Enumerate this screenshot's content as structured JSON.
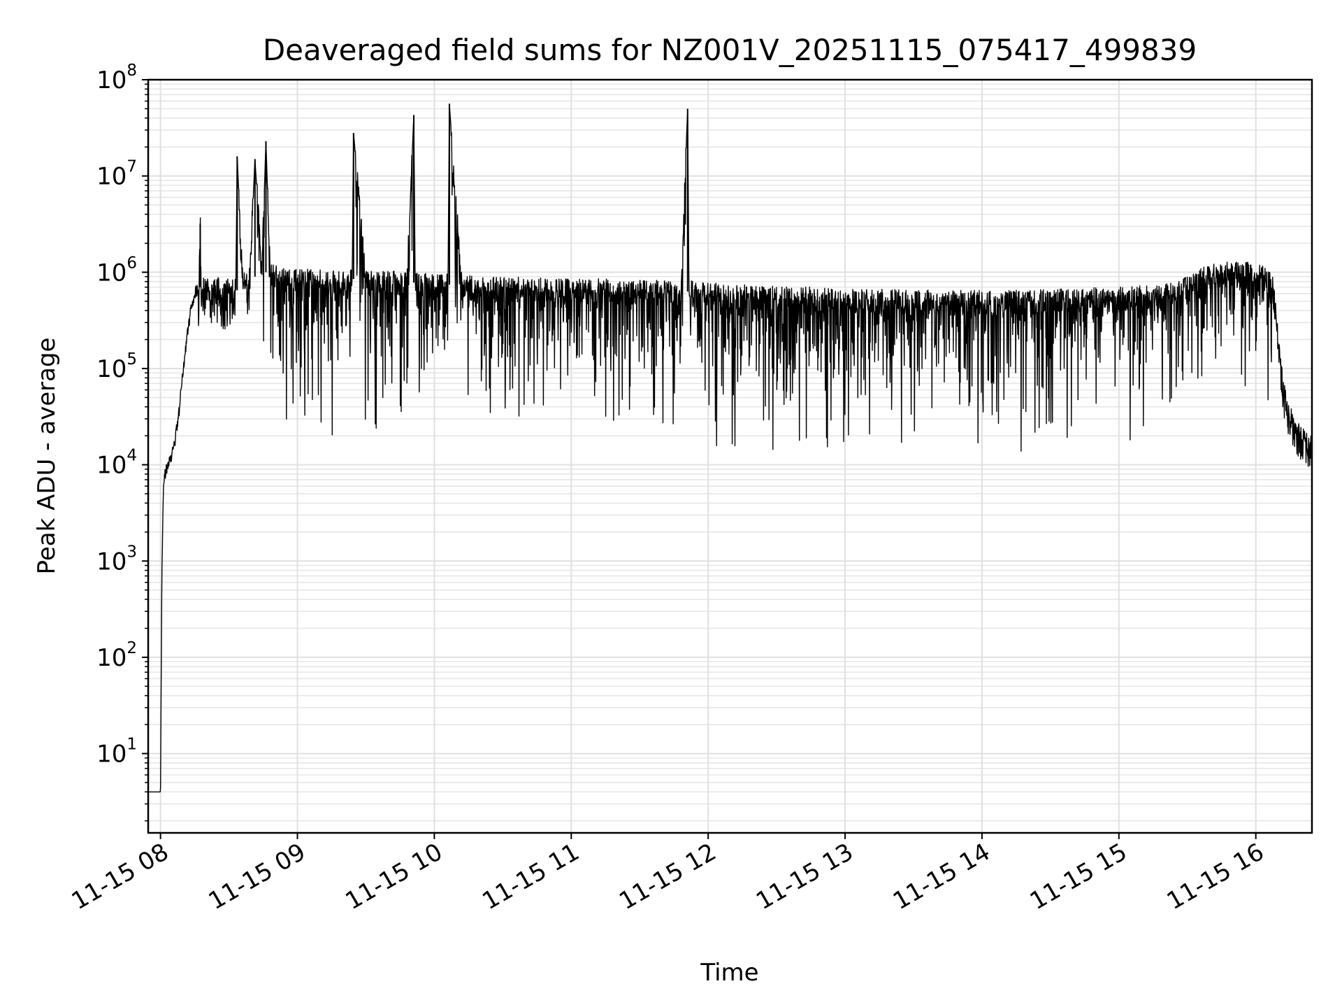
{
  "chart_data": {
    "type": "line",
    "title": "Deaveraged field sums for NZ001V_20251115_075417_499839",
    "xlabel": "Time",
    "ylabel": "Peak ADU - average",
    "yscale": "log",
    "ylim": [
      1.5,
      100000000
    ],
    "xlim": [
      7.91,
      16.41
    ],
    "grid": true,
    "line_color": "#000000",
    "x_ticks": [
      {
        "value": 8,
        "label": "11-15 08"
      },
      {
        "value": 9,
        "label": "11-15 09"
      },
      {
        "value": 10,
        "label": "11-15 10"
      },
      {
        "value": 11,
        "label": "11-15 11"
      },
      {
        "value": 12,
        "label": "11-15 12"
      },
      {
        "value": 13,
        "label": "11-15 13"
      },
      {
        "value": 14,
        "label": "11-15 14"
      },
      {
        "value": 15,
        "label": "11-15 15"
      },
      {
        "value": 16,
        "label": "11-15 16"
      }
    ],
    "y_ticks": [
      {
        "value": 10,
        "base": "10",
        "exp": "1"
      },
      {
        "value": 100,
        "base": "10",
        "exp": "2"
      },
      {
        "value": 1000,
        "base": "10",
        "exp": "3"
      },
      {
        "value": 10000,
        "base": "10",
        "exp": "4"
      },
      {
        "value": 100000,
        "base": "10",
        "exp": "5"
      },
      {
        "value": 1000000,
        "base": "10",
        "exp": "6"
      },
      {
        "value": 10000000,
        "base": "10",
        "exp": "7"
      },
      {
        "value": 100000000,
        "base": "10",
        "exp": "8"
      }
    ],
    "series": [
      {
        "name": "Peak ADU - average",
        "x": [
          7.91,
          7.94,
          7.97,
          7.99,
          8.0,
          8.01,
          8.02,
          8.03,
          8.05,
          8.08,
          8.1,
          8.13,
          8.16,
          8.19,
          8.22,
          8.25,
          8.28,
          8.29,
          8.3,
          8.34,
          8.38,
          8.42,
          8.46,
          8.5,
          8.55,
          8.56,
          8.6,
          8.65,
          8.69,
          8.74,
          8.77,
          8.8,
          8.85,
          8.9,
          8.95,
          9.0,
          9.1,
          9.2,
          9.3,
          9.4,
          9.41,
          9.5,
          9.6,
          9.7,
          9.8,
          9.85,
          9.86,
          9.9,
          10.0,
          10.05,
          10.1,
          10.11,
          10.2,
          10.4,
          10.6,
          10.8,
          11.0,
          11.2,
          11.4,
          11.6,
          11.8,
          11.85,
          11.86,
          12.0,
          12.2,
          12.4,
          12.6,
          12.8,
          13.0,
          13.2,
          13.4,
          13.6,
          13.8,
          14.0,
          14.2,
          14.4,
          14.6,
          14.8,
          15.0,
          15.2,
          15.4,
          15.5,
          15.6,
          15.7,
          15.8,
          15.9,
          16.0,
          16.05,
          16.1,
          16.13,
          16.15,
          16.18,
          16.2,
          16.22,
          16.25,
          16.28,
          16.32,
          16.36,
          16.41
        ],
        "y": [
          4,
          4,
          4,
          4,
          4,
          700,
          5000,
          8000,
          9500,
          12000,
          16000,
          30000,
          80000,
          200000,
          400000,
          600000,
          700000,
          3200000,
          700000,
          700000,
          650000,
          680000,
          600000,
          700000,
          650000,
          16000000,
          800000,
          900000,
          15000000,
          1000000,
          23000000,
          1100000,
          900000,
          850000,
          900000,
          900000,
          850000,
          800000,
          800000,
          850000,
          28000000,
          800000,
          780000,
          800000,
          780000,
          43000000,
          800000,
          760000,
          750000,
          740000,
          740000,
          56000000,
          720000,
          700000,
          690000,
          680000,
          670000,
          660000,
          650000,
          640000,
          630000,
          50000000,
          630000,
          600000,
          580000,
          560000,
          550000,
          540000,
          530000,
          520000,
          510000,
          505000,
          500000,
          500000,
          500000,
          510000,
          520000,
          530000,
          540000,
          560000,
          600000,
          700000,
          850000,
          950000,
          1000000,
          1000000,
          950000,
          900000,
          800000,
          600000,
          300000,
          100000,
          60000,
          40000,
          30000,
          22000,
          19000,
          16000,
          14000
        ]
      }
    ]
  }
}
